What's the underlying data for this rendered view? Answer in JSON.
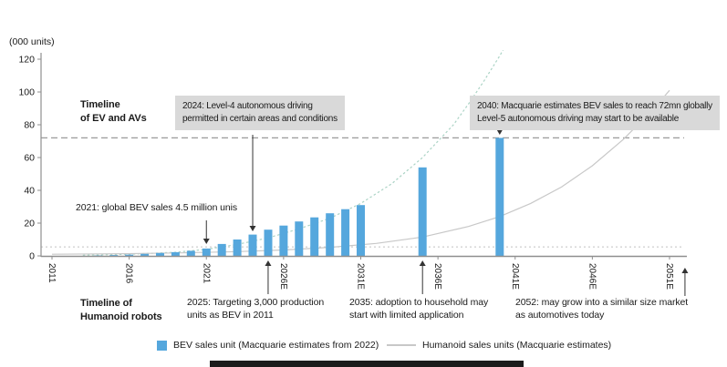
{
  "units_label": "(000 units)",
  "colors": {
    "bev_blue": "#55a7dd",
    "humanoid_gray": "#c8c8c8",
    "bev_trend_teal": "#abd3c5",
    "annotation_box_bg": "#d9d9d9",
    "axis_gray": "#8f8f8f",
    "dashed_line_gray": "#9a9a9a",
    "text": "#1a1a1a"
  },
  "chart_data": {
    "type": "bar",
    "subtype": "bar + line combo",
    "ylabel": "(000 units)",
    "ylim": [
      0,
      120
    ],
    "y_ticks": [
      0,
      20,
      40,
      60,
      80,
      100,
      120
    ],
    "x_ticks": [
      {
        "year": 2011,
        "label": "2011"
      },
      {
        "year": 2016,
        "label": "2016"
      },
      {
        "year": 2021,
        "label": "2021"
      },
      {
        "year": 2026,
        "label": "2026E"
      },
      {
        "year": 2031,
        "label": "2031E"
      },
      {
        "year": 2036,
        "label": "2036E"
      },
      {
        "year": 2041,
        "label": "2041E"
      },
      {
        "year": 2046,
        "label": "2046E"
      },
      {
        "year": 2051,
        "label": "2051E"
      }
    ],
    "series": [
      {
        "name": "BEV sales unit (Macquarie estimates from 2022)",
        "type": "bar",
        "color": "#55a7dd",
        "points": [
          [
            2014,
            0.3
          ],
          [
            2015,
            0.5
          ],
          [
            2016,
            0.8
          ],
          [
            2017,
            1.2
          ],
          [
            2018,
            1.8
          ],
          [
            2019,
            2.3
          ],
          [
            2020,
            3.1
          ],
          [
            2021,
            4.5
          ],
          [
            2022,
            7.3
          ],
          [
            2023,
            10
          ],
          [
            2024,
            13
          ],
          [
            2025,
            16
          ],
          [
            2026,
            18.5
          ],
          [
            2027,
            21
          ],
          [
            2028,
            23.5
          ],
          [
            2029,
            26
          ],
          [
            2030,
            28.5
          ],
          [
            2031,
            31
          ],
          [
            2035,
            54
          ],
          [
            2040,
            72
          ]
        ]
      },
      {
        "name": "BEV sales trend curve (unlabeled, dotted)",
        "type": "line",
        "style": "dotted",
        "color": "#abd3c5",
        "points": [
          [
            2013,
            0.4
          ],
          [
            2016,
            1
          ],
          [
            2019,
            2.2
          ],
          [
            2021,
            4
          ],
          [
            2023,
            7
          ],
          [
            2025,
            11
          ],
          [
            2027,
            16.5
          ],
          [
            2029,
            23
          ],
          [
            2031,
            32
          ],
          [
            2033,
            44
          ],
          [
            2035,
            60
          ],
          [
            2037,
            80
          ],
          [
            2038,
            93
          ],
          [
            2039,
            107
          ],
          [
            2040,
            122
          ],
          [
            2040.6,
            132
          ]
        ]
      },
      {
        "name": "Humanoid sales units (Macquarie estimates)",
        "type": "line",
        "style": "solid",
        "color": "#c8c8c8",
        "points": [
          [
            2011,
            1
          ],
          [
            2015,
            1.3
          ],
          [
            2019,
            1.8
          ],
          [
            2023,
            2.6
          ],
          [
            2026,
            3.6
          ],
          [
            2029,
            5.2
          ],
          [
            2032,
            7.6
          ],
          [
            2035,
            11.5
          ],
          [
            2038,
            18
          ],
          [
            2040,
            24
          ],
          [
            2042,
            32
          ],
          [
            2044,
            42
          ],
          [
            2046,
            55
          ],
          [
            2048,
            71
          ],
          [
            2050,
            90
          ],
          [
            2051,
            101
          ]
        ]
      }
    ],
    "ref_lines": [
      {
        "value": 72,
        "style": "dashed"
      },
      {
        "value": 5.5,
        "style": "dotted"
      }
    ],
    "legend_position": "bottom"
  },
  "annotations": {
    "ev_timeline": {
      "line1": "Timeline",
      "line2": "of EV and AVs"
    },
    "box_2024": {
      "line1": "2024: Level-4 autonomous driving",
      "line2": "permitted in certain areas and conditions",
      "arrow_year": 2024
    },
    "note_2021": {
      "text": "2021: global BEV sales 4.5 million unis",
      "arrow_year": 2021
    },
    "box_2040": {
      "line1": "2040: Macquarie estimates BEV sales to reach 72mn globally",
      "line2": "Level-5 autonomous driving may start to be available",
      "arrow_year": 2040
    },
    "humanoid_timeline": {
      "line1": "Timeline of",
      "line2": "Humanoid robots"
    },
    "note_2025": {
      "line1": "2025: Targeting 3,000 production",
      "line2": "units as BEV in 2011",
      "arrow_year": 2025
    },
    "note_2035": {
      "line1": "2035: adoption to household may",
      "line2": "start with limited application",
      "arrow_year": 2035
    },
    "note_2052": {
      "line1": "2052: may grow into a similar size market",
      "line2": "as automotives today",
      "arrow_year": 2052
    }
  },
  "legend": {
    "items": [
      {
        "label": "BEV sales unit (Macquarie estimates from 2022)",
        "swatch": "square",
        "color": "#55a7dd"
      },
      {
        "label": "Humanoid sales units (Macquarie estimates)",
        "swatch": "line",
        "color": "#c8c8c8"
      }
    ]
  }
}
